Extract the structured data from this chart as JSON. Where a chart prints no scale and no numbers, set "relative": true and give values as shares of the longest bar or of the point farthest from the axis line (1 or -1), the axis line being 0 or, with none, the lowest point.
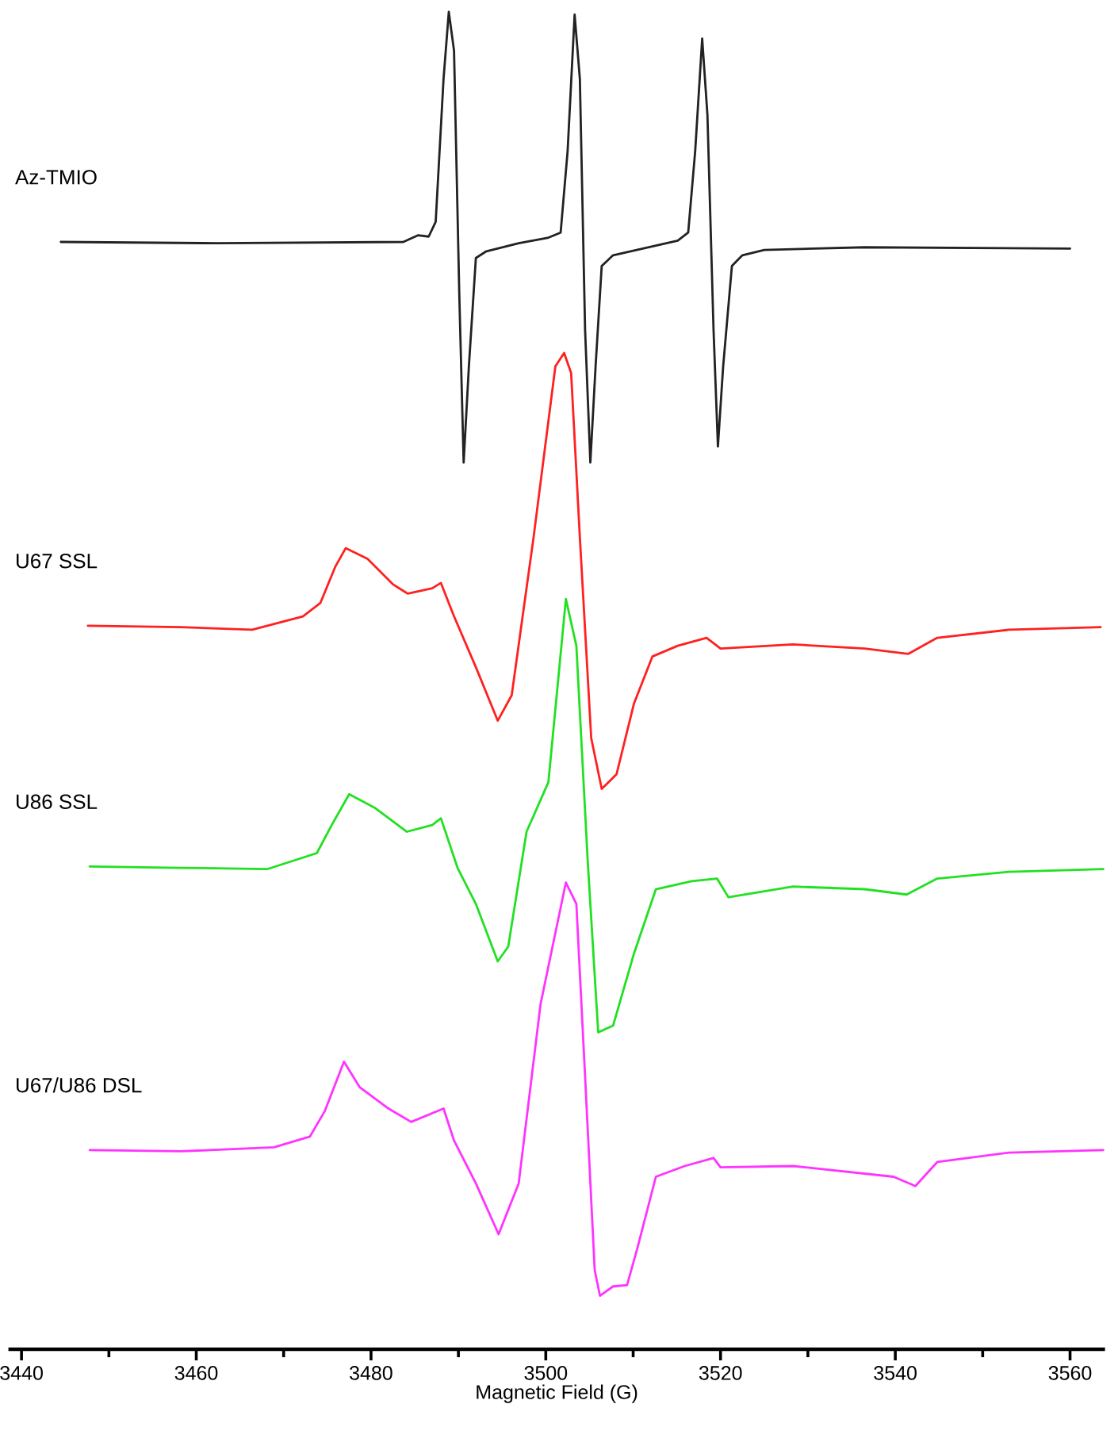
{
  "chart_data": {
    "type": "line",
    "relative": true,
    "xlabel": "Magnetic Field (G)",
    "xlim": [
      3438.5,
      3564
    ],
    "xticks": [
      3440,
      {
        "value": 3450,
        "label": null
      },
      3460,
      {
        "value": 3470,
        "label": null
      },
      3480,
      {
        "value": 3490,
        "label": null
      },
      3500,
      {
        "value": 3510,
        "label": null
      },
      3520,
      {
        "value": 3530,
        "label": null
      },
      3540,
      {
        "value": 3550,
        "label": null
      },
      3560
    ],
    "legend": false,
    "grid": false,
    "marker": "none",
    "line_style": "solid",
    "series": [
      {
        "name": "Az-TMIO",
        "color": "#222222",
        "x": [
          3444.5,
          3462.3,
          3483.7,
          3485.4,
          3486.6,
          3487.4,
          3488.3,
          3488.9,
          3489.5,
          3490.1,
          3490.6,
          3491.2,
          3492.0,
          3493.2,
          3496.9,
          3500.2,
          3501.7,
          3502.5,
          3503.3,
          3503.9,
          3504.5,
          3505.1,
          3505.7,
          3506.4,
          3507.7,
          3511.8,
          3515.1,
          3516.3,
          3517.1,
          3517.9,
          3518.5,
          3519.2,
          3519.7,
          3520.3,
          3521.3,
          3522.5,
          3525.0,
          3536.5,
          3560.0
        ],
        "values": [
          0.828,
          0.827,
          0.828,
          0.833,
          0.832,
          0.843,
          0.95,
          1.0,
          0.971,
          0.789,
          0.663,
          0.735,
          0.816,
          0.821,
          0.827,
          0.831,
          0.835,
          0.896,
          0.998,
          0.95,
          0.762,
          0.663,
          0.735,
          0.81,
          0.818,
          0.824,
          0.829,
          0.835,
          0.896,
          0.98,
          0.923,
          0.762,
          0.675,
          0.735,
          0.81,
          0.818,
          0.822,
          0.824,
          0.823
        ]
      },
      {
        "name": "U67 SSL",
        "color": "#ff2020",
        "x": [
          3447.6,
          3458.2,
          3466.4,
          3472.2,
          3474.2,
          3475.9,
          3477.1,
          3479.6,
          3482.5,
          3484.2,
          3487.0,
          3488.0,
          3489.5,
          3492.0,
          3494.5,
          3496.1,
          3498.6,
          3501.1,
          3502.1,
          3502.9,
          3503.9,
          3505.2,
          3506.4,
          3508.1,
          3510.1,
          3512.2,
          3515.1,
          3518.4,
          3520.0,
          3528.3,
          3536.5,
          3541.5,
          3544.8,
          3553.0,
          3563.5
        ],
        "values": [
          0.541,
          0.54,
          0.538,
          0.548,
          0.558,
          0.585,
          0.599,
          0.591,
          0.572,
          0.565,
          0.569,
          0.573,
          0.548,
          0.51,
          0.47,
          0.489,
          0.607,
          0.735,
          0.745,
          0.73,
          0.607,
          0.457,
          0.419,
          0.43,
          0.483,
          0.518,
          0.526,
          0.532,
          0.524,
          0.527,
          0.524,
          0.52,
          0.532,
          0.538,
          0.54
        ]
      },
      {
        "name": "U86 SSL",
        "color": "#22e022",
        "x": [
          3447.8,
          3458.2,
          3468.1,
          3473.8,
          3475.5,
          3477.5,
          3480.4,
          3484.1,
          3487.0,
          3488.0,
          3489.9,
          3492.0,
          3494.5,
          3495.7,
          3497.8,
          3500.3,
          3502.3,
          3503.5,
          3504.8,
          3506.0,
          3507.7,
          3510.1,
          3512.6,
          3516.7,
          3519.6,
          3520.9,
          3528.3,
          3536.5,
          3541.3,
          3544.8,
          3553.0,
          3563.8
        ],
        "values": [
          0.361,
          0.36,
          0.359,
          0.371,
          0.392,
          0.415,
          0.405,
          0.387,
          0.392,
          0.397,
          0.36,
          0.333,
          0.29,
          0.301,
          0.387,
          0.424,
          0.561,
          0.526,
          0.365,
          0.237,
          0.242,
          0.296,
          0.344,
          0.35,
          0.352,
          0.338,
          0.346,
          0.344,
          0.34,
          0.352,
          0.357,
          0.359
        ]
      },
      {
        "name": "U67/U86 DSL",
        "color": "#ff33ff",
        "x": [
          3447.8,
          3458.2,
          3468.9,
          3473.0,
          3474.7,
          3476.9,
          3478.7,
          3482.0,
          3484.6,
          3488.3,
          3489.5,
          3492.0,
          3494.6,
          3496.9,
          3499.4,
          3502.3,
          3503.5,
          3504.5,
          3505.6,
          3506.2,
          3507.7,
          3509.3,
          3510.5,
          3512.6,
          3515.9,
          3519.2,
          3520.0,
          3528.3,
          3539.8,
          3542.3,
          3544.8,
          3553.0,
          3563.8
        ],
        "values": [
          0.149,
          0.148,
          0.151,
          0.159,
          0.178,
          0.215,
          0.196,
          0.18,
          0.17,
          0.18,
          0.156,
          0.124,
          0.086,
          0.124,
          0.258,
          0.349,
          0.333,
          0.204,
          0.059,
          0.04,
          0.047,
          0.048,
          0.076,
          0.129,
          0.137,
          0.143,
          0.136,
          0.137,
          0.129,
          0.122,
          0.14,
          0.147,
          0.149
        ]
      }
    ]
  }
}
